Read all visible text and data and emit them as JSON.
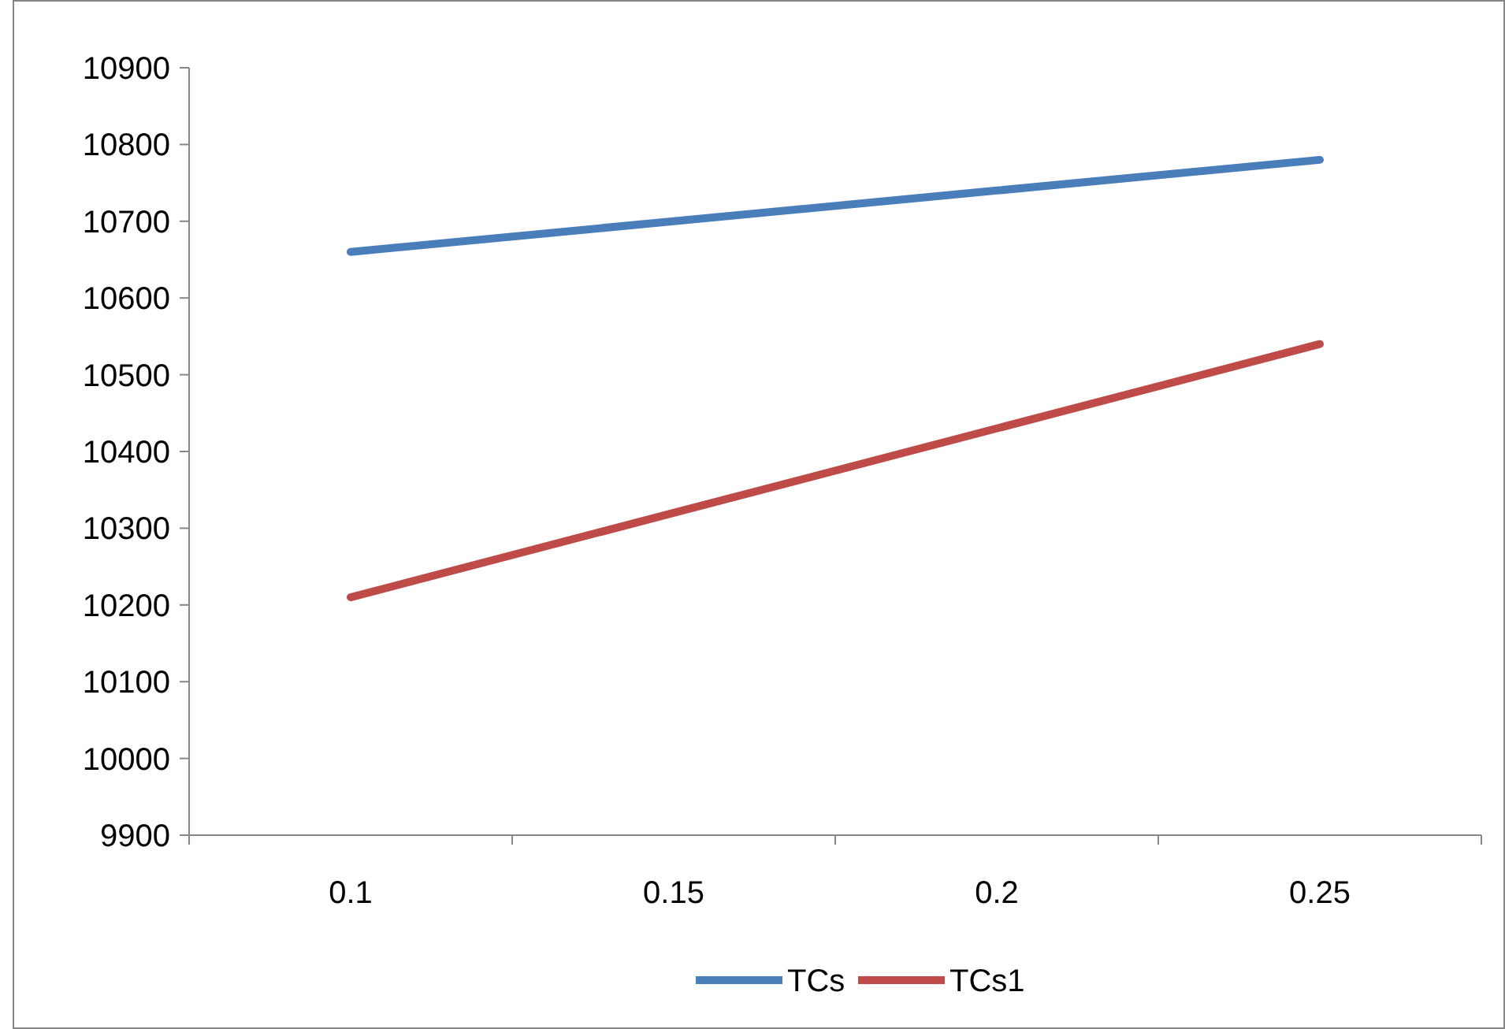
{
  "chart_data": {
    "type": "line",
    "categories": [
      "0.1",
      "0.15",
      "0.2",
      "0.25"
    ],
    "series": [
      {
        "name": "TCs",
        "color": "#4a7ebb",
        "values": [
          10660,
          10700,
          10740,
          10780
        ]
      },
      {
        "name": "TCs1",
        "color": "#be4b48",
        "values": [
          10210,
          10320,
          10430,
          10540
        ]
      }
    ],
    "ylim": [
      9900,
      10900
    ],
    "yticks": [
      9900,
      10000,
      10100,
      10200,
      10300,
      10400,
      10500,
      10600,
      10700,
      10800,
      10900
    ],
    "grid": false,
    "legend": "bottom",
    "marker": "none",
    "line_style": "solid"
  }
}
